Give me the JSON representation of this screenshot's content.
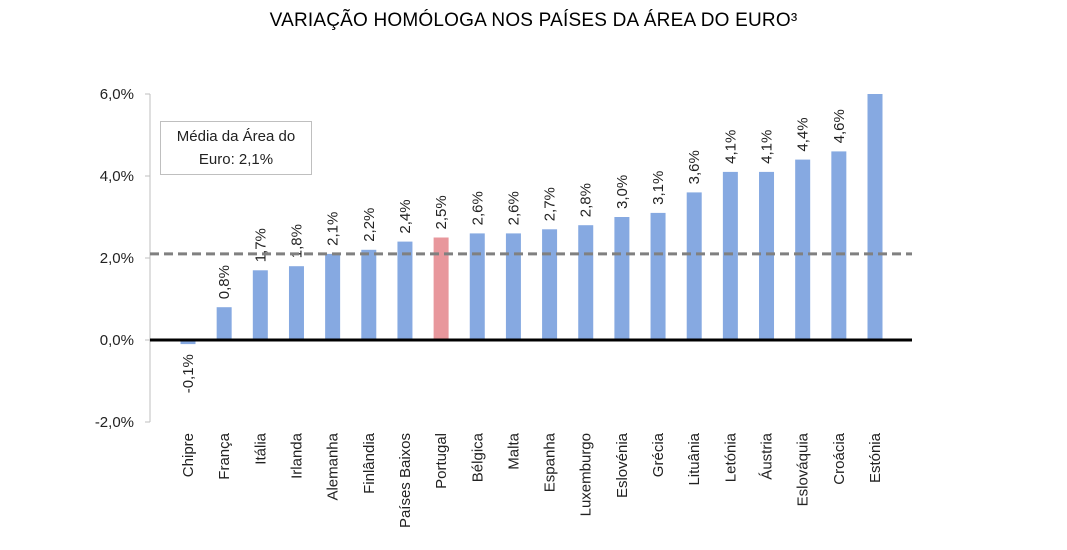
{
  "chart_data": {
    "type": "bar",
    "title": "VARIAÇÃO HOMÓLOGA NOS PAÍSES DA ÁREA DO EURO³",
    "categories": [
      "Chipre",
      "França",
      "Itália",
      "Irlanda",
      "Alemanha",
      "Finlândia",
      "Países Baixos",
      "Portugal",
      "Bélgica",
      "Malta",
      "Espanha",
      "Luxemburgo",
      "Eslovénia",
      "Grécia",
      "Lituânia",
      "Letónia",
      "Áustria",
      "Eslováquia",
      "Croácia",
      "Estónia"
    ],
    "values": [
      -0.1,
      0.8,
      1.7,
      1.8,
      2.1,
      2.2,
      2.4,
      2.5,
      2.6,
      2.6,
      2.7,
      2.8,
      3.0,
      3.1,
      3.6,
      4.1,
      4.1,
      4.4,
      4.6,
      6.0
    ],
    "data_labels": [
      "-0,1%",
      "0,8%",
      "1,7%",
      "1,8%",
      "2,1%",
      "2,2%",
      "2,4%",
      "2,5%",
      "2,6%",
      "2,6%",
      "2,7%",
      "2,8%",
      "3,0%",
      "3,1%",
      "3,6%",
      "4,1%",
      "4,1%",
      "4,4%",
      "4,6%",
      ""
    ],
    "highlight_category": "Portugal",
    "colors": {
      "bar": "#86A9E1",
      "highlight": "#E8979C",
      "average_line": "#808080",
      "zero_line": "#000000"
    },
    "ylim": [
      -2.0,
      6.0
    ],
    "yticks": [
      -2.0,
      0.0,
      2.0,
      4.0,
      6.0
    ],
    "ytick_labels": [
      "-2,0%",
      "0,0%",
      "2,0%",
      "4,0%",
      "6,0%"
    ],
    "average": {
      "value": 2.1,
      "label_line1": "Média da Área do",
      "label_line2": "Euro: 2,1%"
    },
    "xlabel": "",
    "ylabel": "",
    "grid": false
  }
}
